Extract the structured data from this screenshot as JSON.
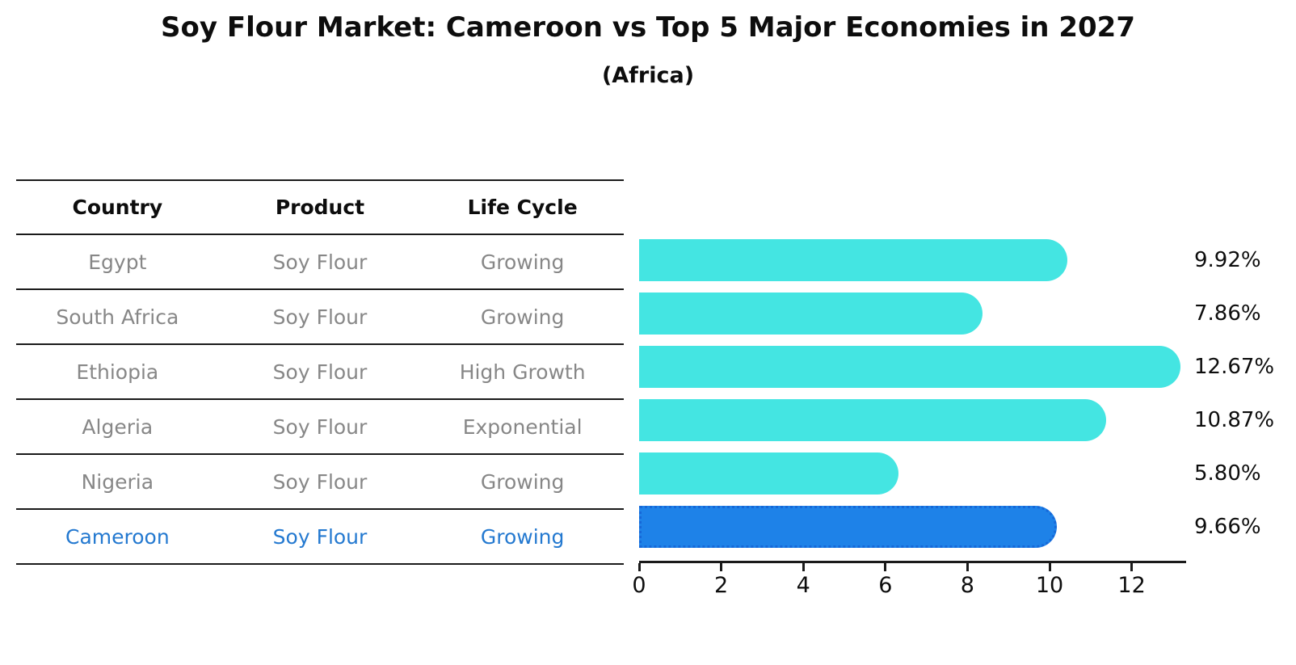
{
  "title": "Soy Flour Market: Cameroon vs Top 5 Major Economies in 2027",
  "subtitle": "(Africa)",
  "table": {
    "headers": [
      "Country",
      "Product",
      "Life Cycle"
    ],
    "rows": [
      {
        "country": "Egypt",
        "product": "Soy Flour",
        "life_cycle": "Growing",
        "highlighted": false
      },
      {
        "country": "South Africa",
        "product": "Soy Flour",
        "life_cycle": "Growing",
        "highlighted": false
      },
      {
        "country": "Ethiopia",
        "product": "Soy Flour",
        "life_cycle": "High Growth",
        "highlighted": false
      },
      {
        "country": "Algeria",
        "product": "Soy Flour",
        "life_cycle": "Exponential",
        "highlighted": false
      },
      {
        "country": "Nigeria",
        "product": "Soy Flour",
        "life_cycle": "Growing",
        "highlighted": false
      },
      {
        "country": "Cameroon",
        "product": "Soy Flour",
        "life_cycle": "Growing",
        "highlighted": true
      }
    ]
  },
  "chart_data": {
    "type": "bar",
    "orientation": "horizontal",
    "categories": [
      "Egypt",
      "South Africa",
      "Ethiopia",
      "Algeria",
      "Nigeria",
      "Cameroon"
    ],
    "values": [
      9.92,
      7.86,
      12.67,
      10.87,
      5.8,
      9.66
    ],
    "value_labels": [
      "9.92%",
      "7.86%",
      "12.67%",
      "10.87%",
      "5.80%",
      "9.66%"
    ],
    "unit": "%",
    "xlim": [
      0,
      13.3
    ],
    "x_ticks": [
      "0",
      "2",
      "4",
      "6",
      "8",
      "10",
      "12"
    ],
    "grid": false,
    "legend": false,
    "highlight_category": "Cameroon"
  },
  "colors": {
    "bar": "#44e5e2",
    "highlight_bar": "#1e82e8",
    "highlight_bar_dots": "#1668d8",
    "table_text": "#878787",
    "highlight_text": "#2479d0",
    "axis": "#1a1a1a"
  }
}
